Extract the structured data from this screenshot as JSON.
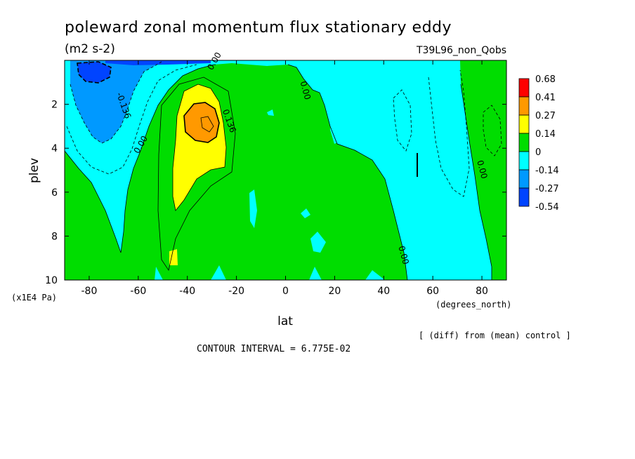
{
  "chart_data": {
    "type": "heatmap",
    "title": "poleward zonal momentum flux stationary eddy",
    "units": "(m2 s-2)",
    "run_label": "T39L96_non_Qobs",
    "xlabel": "lat",
    "x_units": "(degrees_north)",
    "ylabel": "plev",
    "y_units": "(x1E4 Pa)",
    "x_range": [
      -90,
      90
    ],
    "y_range": [
      10,
      0
    ],
    "y_axis": "pressure, increasing downward",
    "x_ticks": [
      "-80",
      "-60",
      "-40",
      "-20",
      "0",
      "20",
      "40",
      "60",
      "80"
    ],
    "x_tick_values": [
      -80,
      -60,
      -40,
      -20,
      0,
      20,
      40,
      60,
      80
    ],
    "y_ticks": [
      "2",
      "4",
      "6",
      "8",
      "10"
    ],
    "y_tick_values": [
      2,
      4,
      6,
      8,
      10
    ],
    "contour_interval_text": "CONTOUR INTERVAL = 6.775E-02",
    "footnote": "[ (diff) from (mean) control ]",
    "contour_labels": [
      {
        "text": "0.00",
        "lat": -28,
        "plev": 0.1
      },
      {
        "text": "0.00",
        "lat": 7,
        "plev": 1.4
      },
      {
        "text": "-0.136",
        "lat": -67,
        "plev": 2.1
      },
      {
        "text": "0.00",
        "lat": -58,
        "plev": 3.9
      },
      {
        "text": "0.136",
        "lat": -24,
        "plev": 2.8
      },
      {
        "text": "0.00",
        "lat": 79,
        "plev": 5.0
      },
      {
        "text": "0.00",
        "lat": 47,
        "plev": 8.9
      }
    ],
    "colorbar": {
      "levels": [
        "0.68",
        "0.41",
        "0.27",
        "0.14",
        "0",
        "-0.14",
        "-0.27",
        "-0.54"
      ],
      "colors": [
        "#ff0000",
        "#ff9900",
        "#ffff00",
        "#00dd00",
        "#00ffff",
        "#0099ff",
        "#0044ff"
      ]
    },
    "regions": [
      {
        "name": "strong negative core",
        "value_range": [
          -0.54,
          -0.27
        ],
        "lat": -75,
        "plev": 0.5
      },
      {
        "name": "southern negative lobe",
        "value_range": [
          -0.27,
          -0.14
        ],
        "lat": -72,
        "plev": 2.0
      },
      {
        "name": "positive jet maximum",
        "value_range": [
          0.27,
          0.41
        ],
        "lat": -33,
        "plev": 2.9
      },
      {
        "name": "positive jet flank",
        "value_range": [
          0.14,
          0.27
        ],
        "lat": -33,
        "plev": 3.5
      }
    ]
  }
}
